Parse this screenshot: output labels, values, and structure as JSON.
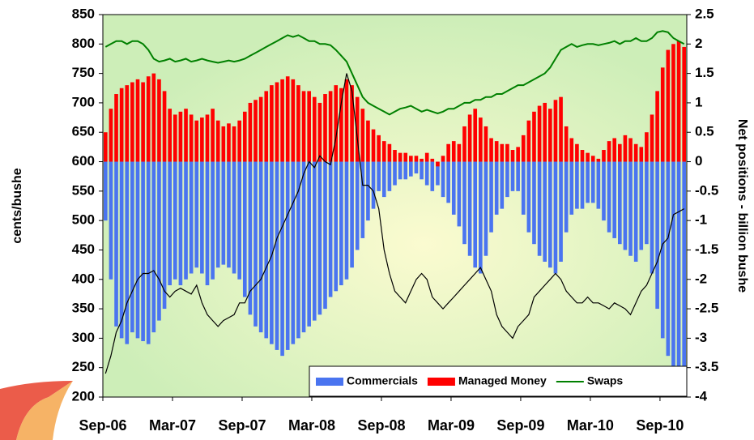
{
  "chart_data": {
    "type": "combo",
    "categories": [
      "Sep-06",
      null,
      null,
      null,
      null,
      null,
      null,
      null,
      null,
      null,
      null,
      null,
      null,
      "Mar-07",
      null,
      null,
      null,
      null,
      null,
      null,
      null,
      null,
      null,
      null,
      null,
      null,
      "Sep-07",
      null,
      null,
      null,
      null,
      null,
      null,
      null,
      null,
      null,
      null,
      null,
      null,
      "Mar-08",
      null,
      null,
      null,
      null,
      null,
      null,
      null,
      null,
      null,
      null,
      null,
      null,
      "Sep-08",
      null,
      null,
      null,
      null,
      null,
      null,
      null,
      null,
      null,
      null,
      null,
      null,
      "Mar-09",
      null,
      null,
      null,
      null,
      null,
      null,
      null,
      null,
      null,
      null,
      null,
      null,
      "Sep-09",
      null,
      null,
      null,
      null,
      null,
      null,
      null,
      null,
      null,
      null,
      null,
      null,
      "Mar-10",
      null,
      null,
      null,
      null,
      null,
      null,
      null,
      null,
      null,
      null,
      null,
      null,
      "Sep-10",
      null,
      null,
      null,
      null
    ],
    "ylabel": "cents/bushe",
    "y2label": "Net positions - billion bushe",
    "ylim": [
      200,
      850
    ],
    "yticks": [
      200,
      250,
      300,
      350,
      400,
      450,
      500,
      550,
      600,
      650,
      700,
      750,
      800,
      850
    ],
    "y2lim": [
      -4,
      2.5
    ],
    "y2ticks": [
      -4,
      -3.5,
      -3,
      -2.5,
      -2,
      -1.5,
      -1,
      -0.5,
      0,
      0.5,
      1,
      1.5,
      2,
      2.5
    ],
    "legend": "lower right",
    "series": [
      {
        "name": "Commercials",
        "type": "bar",
        "axis": "y2",
        "color": "#4a74f0",
        "values": [
          -1.0,
          -2.0,
          -2.8,
          -3.0,
          -3.1,
          -2.9,
          -3.0,
          -3.05,
          -3.1,
          -2.9,
          -2.7,
          -2.5,
          -2.1,
          -2.0,
          -2.1,
          -2.0,
          -1.9,
          -1.8,
          -1.9,
          -2.1,
          -2.0,
          -1.8,
          -1.75,
          -1.8,
          -1.9,
          -2.0,
          -2.3,
          -2.6,
          -2.8,
          -2.9,
          -3.0,
          -3.1,
          -3.2,
          -3.3,
          -3.2,
          -3.1,
          -3.0,
          -2.9,
          -2.8,
          -2.7,
          -2.6,
          -2.5,
          -2.3,
          -2.2,
          -2.1,
          -2.0,
          -1.8,
          -1.5,
          -1.3,
          -1.0,
          -0.8,
          -0.5,
          -0.6,
          -0.5,
          -0.4,
          -0.3,
          -0.3,
          -0.25,
          -0.2,
          -0.3,
          -0.4,
          -0.5,
          -0.4,
          -0.6,
          -0.7,
          -0.9,
          -1.1,
          -1.4,
          -1.6,
          -1.8,
          -1.9,
          -1.6,
          -1.2,
          -0.9,
          -0.8,
          -0.6,
          -0.5,
          -0.5,
          -0.9,
          -1.2,
          -1.4,
          -1.6,
          -1.7,
          -1.8,
          -1.9,
          -1.7,
          -1.2,
          -0.9,
          -0.8,
          -0.8,
          -0.7,
          -0.7,
          -0.8,
          -1.0,
          -1.2,
          -1.3,
          -1.4,
          -1.5,
          -1.6,
          -1.7,
          -1.5,
          -1.4,
          -1.9,
          -2.5,
          -3.0,
          -3.3,
          -3.5,
          -3.6,
          -3.5
        ]
      },
      {
        "name": "Managed Money",
        "type": "bar",
        "axis": "y2",
        "color": "#ff0000",
        "values": [
          0.5,
          0.9,
          1.15,
          1.25,
          1.3,
          1.35,
          1.4,
          1.35,
          1.45,
          1.5,
          1.4,
          1.2,
          0.9,
          0.8,
          0.85,
          0.9,
          0.8,
          0.7,
          0.75,
          0.8,
          0.9,
          0.7,
          0.6,
          0.65,
          0.6,
          0.7,
          0.85,
          1.0,
          1.05,
          1.1,
          1.2,
          1.3,
          1.35,
          1.4,
          1.45,
          1.4,
          1.3,
          1.2,
          1.2,
          1.1,
          1.0,
          1.15,
          1.2,
          1.3,
          1.25,
          1.4,
          1.3,
          1.1,
          0.9,
          0.7,
          0.55,
          0.45,
          0.35,
          0.3,
          0.2,
          0.15,
          0.15,
          0.1,
          0.1,
          0.05,
          0.15,
          0.05,
          -0.08,
          0.1,
          0.3,
          0.35,
          0.3,
          0.6,
          0.8,
          0.9,
          0.75,
          0.6,
          0.4,
          0.35,
          0.3,
          0.3,
          0.2,
          0.25,
          0.45,
          0.7,
          0.85,
          0.95,
          1.0,
          0.9,
          1.05,
          1.1,
          0.6,
          0.4,
          0.3,
          0.2,
          0.15,
          0.1,
          0.05,
          0.2,
          0.35,
          0.4,
          0.3,
          0.45,
          0.4,
          0.3,
          0.25,
          0.5,
          0.8,
          1.2,
          1.6,
          1.9,
          2.0,
          2.05,
          1.95
        ]
      },
      {
        "name": "Swaps",
        "type": "line",
        "axis": "y2",
        "color": "#008000",
        "values": [
          1.95,
          2.0,
          2.05,
          2.05,
          2.0,
          2.05,
          2.05,
          2.0,
          1.9,
          1.75,
          1.7,
          1.72,
          1.75,
          1.7,
          1.72,
          1.75,
          1.7,
          1.72,
          1.75,
          1.72,
          1.7,
          1.68,
          1.7,
          1.72,
          1.7,
          1.72,
          1.75,
          1.8,
          1.85,
          1.9,
          1.95,
          2.0,
          2.05,
          2.1,
          2.15,
          2.12,
          2.15,
          2.1,
          2.05,
          2.05,
          2.0,
          2.0,
          1.98,
          1.9,
          1.8,
          1.7,
          1.5,
          1.3,
          1.1,
          1.0,
          0.95,
          0.9,
          0.85,
          0.8,
          0.85,
          0.9,
          0.92,
          0.95,
          0.9,
          0.85,
          0.88,
          0.85,
          0.82,
          0.85,
          0.9,
          0.9,
          0.95,
          1.0,
          1.0,
          1.05,
          1.05,
          1.1,
          1.1,
          1.15,
          1.15,
          1.2,
          1.25,
          1.3,
          1.3,
          1.35,
          1.4,
          1.45,
          1.5,
          1.6,
          1.75,
          1.9,
          1.95,
          2.0,
          1.95,
          1.98,
          2.0,
          2.0,
          1.98,
          2.0,
          2.02,
          2.05,
          2.0,
          2.05,
          2.05,
          2.1,
          2.05,
          2.05,
          2.1,
          2.2,
          2.22,
          2.2,
          2.1,
          2.05,
          2.0
        ]
      },
      {
        "type": "line",
        "axis": "y",
        "color": "#000000",
        "values": [
          240,
          270,
          310,
          330,
          360,
          380,
          400,
          410,
          410,
          415,
          400,
          380,
          370,
          380,
          385,
          380,
          375,
          390,
          360,
          340,
          330,
          320,
          330,
          335,
          340,
          360,
          360,
          380,
          390,
          400,
          420,
          440,
          470,
          490,
          510,
          530,
          550,
          580,
          600,
          590,
          610,
          600,
          595,
          640,
          700,
          750,
          720,
          640,
          560,
          560,
          550,
          520,
          450,
          410,
          380,
          370,
          360,
          380,
          400,
          410,
          400,
          370,
          360,
          350,
          360,
          370,
          380,
          390,
          400,
          410,
          420,
          400,
          380,
          340,
          320,
          310,
          300,
          320,
          330,
          340,
          370,
          380,
          390,
          400,
          410,
          400,
          380,
          370,
          360,
          360,
          370,
          360,
          360,
          355,
          350,
          360,
          355,
          350,
          340,
          360,
          380,
          390,
          410,
          430,
          460,
          470,
          510,
          515,
          520
        ]
      }
    ]
  }
}
